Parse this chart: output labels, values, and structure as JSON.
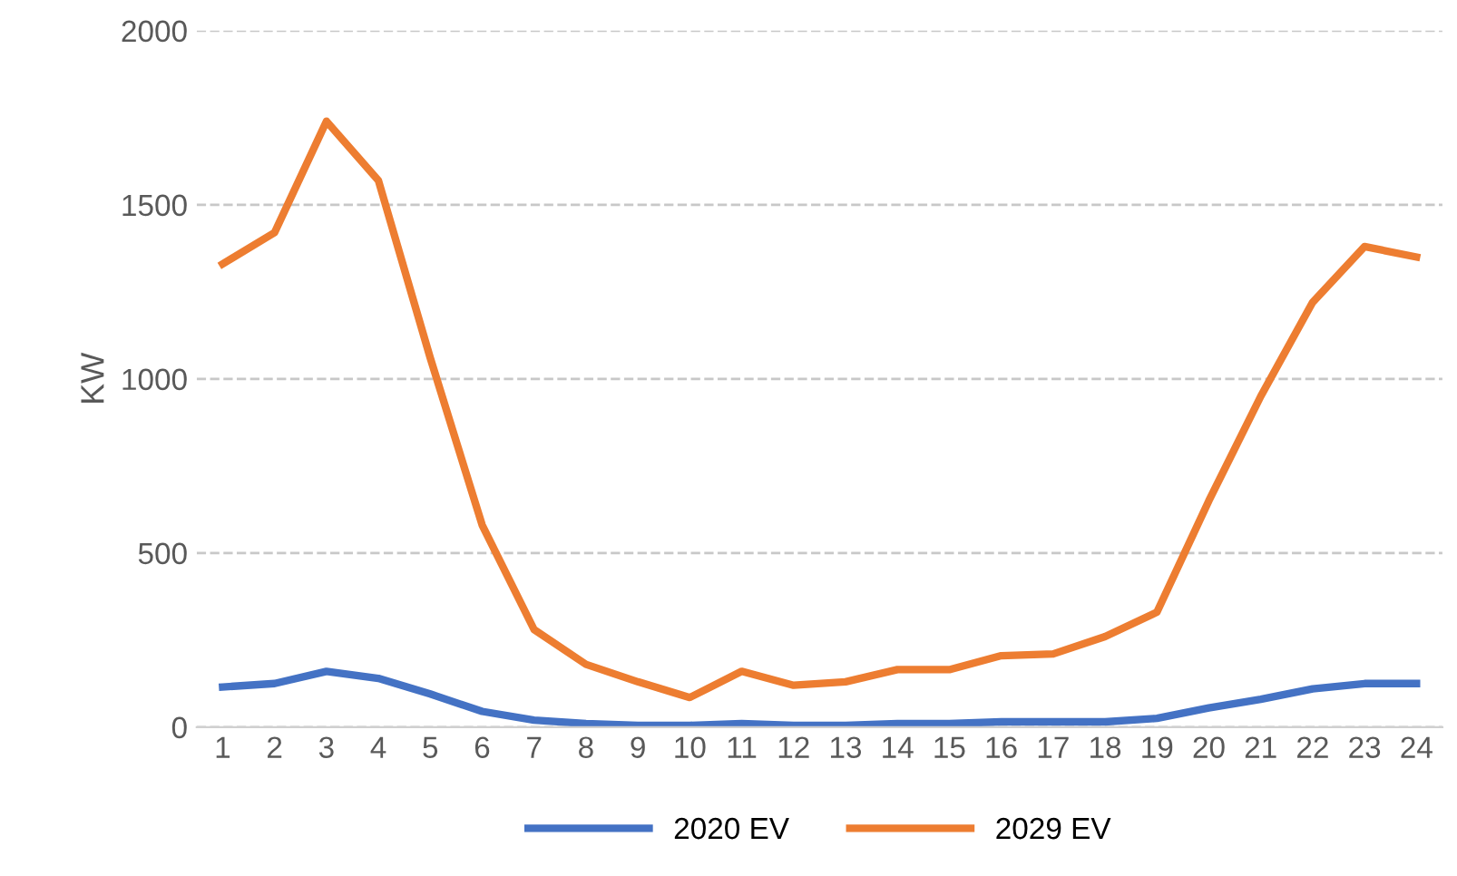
{
  "chart_data": {
    "type": "line",
    "ylabel": "KW",
    "categories": [
      "1",
      "2",
      "3",
      "4",
      "5",
      "6",
      "7",
      "8",
      "9",
      "10",
      "11",
      "12",
      "13",
      "14",
      "15",
      "16",
      "17",
      "18",
      "19",
      "20",
      "21",
      "22",
      "23",
      "24"
    ],
    "series": [
      {
        "name": "2020 EV",
        "color": "#4472c4",
        "values": [
          115,
          125,
          160,
          140,
          95,
          45,
          20,
          10,
          5,
          5,
          10,
          5,
          5,
          10,
          10,
          15,
          15,
          15,
          25,
          55,
          80,
          110,
          125,
          125
        ]
      },
      {
        "name": "2029 EV",
        "color": "#ed7d31",
        "values": [
          1330,
          1420,
          1740,
          1570,
          1060,
          580,
          280,
          180,
          130,
          85,
          160,
          120,
          130,
          165,
          165,
          205,
          210,
          260,
          330,
          650,
          950,
          1220,
          1380,
          1350
        ]
      }
    ],
    "ylim": [
      0,
      2000
    ],
    "yticks": [
      0,
      500,
      1000,
      1500,
      2000
    ],
    "grid": "y",
    "legend": "bottom",
    "marker": "none",
    "line_style": "solid"
  }
}
